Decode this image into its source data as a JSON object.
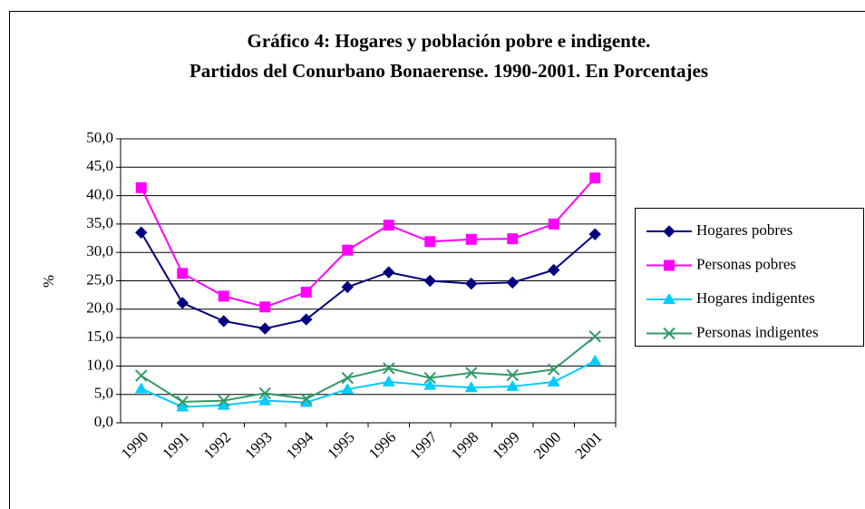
{
  "chart_data": {
    "type": "line",
    "title": "Gráfico 4: Hogares y población pobre e indigente.",
    "subtitle": "Partidos del Conurbano Bonaerense. 1990-2001.  En Porcentajes",
    "y_label": "%",
    "categories": [
      "1990",
      "1991",
      "1992",
      "1993",
      "1994",
      "1995",
      "1996",
      "1997",
      "1998",
      "1999",
      "2000",
      "2001"
    ],
    "series": [
      {
        "name": "Hogares pobres",
        "color": "#000080",
        "marker": "diamond",
        "values": [
          33.5,
          21.1,
          17.9,
          16.6,
          18.2,
          23.9,
          26.5,
          25.0,
          24.5,
          24.7,
          26.9,
          33.2
        ]
      },
      {
        "name": "Personas pobres",
        "color": "#ff00ff",
        "marker": "square",
        "values": [
          41.4,
          26.3,
          22.3,
          20.4,
          23.0,
          30.4,
          34.8,
          31.9,
          32.3,
          32.4,
          35.0,
          43.1
        ]
      },
      {
        "name": "Hogares indigentes",
        "color": "#00ccff",
        "marker": "triangle",
        "values": [
          6.0,
          2.8,
          3.1,
          3.9,
          3.6,
          5.9,
          7.2,
          6.6,
          6.2,
          6.4,
          7.2,
          10.9
        ]
      },
      {
        "name": "Personas indigentes",
        "color": "#339966",
        "marker": "x",
        "values": [
          8.3,
          3.7,
          3.9,
          5.2,
          4.2,
          7.9,
          9.6,
          7.9,
          8.8,
          8.4,
          9.4,
          15.2
        ]
      }
    ],
    "ylim": [
      0,
      50
    ],
    "yticks": [
      {
        "value": 0,
        "label": "0,0"
      },
      {
        "value": 5,
        "label": "5,0"
      },
      {
        "value": 10,
        "label": "10,0"
      },
      {
        "value": 15,
        "label": "15,0"
      },
      {
        "value": 20,
        "label": "20,0"
      },
      {
        "value": 25,
        "label": "25,0"
      },
      {
        "value": 30,
        "label": "30,0"
      },
      {
        "value": 35,
        "label": "35,0"
      },
      {
        "value": 40,
        "label": "40,0"
      },
      {
        "value": 45,
        "label": "45,0"
      },
      {
        "value": 50,
        "label": "50,0"
      }
    ],
    "grid": true,
    "legend": "right"
  }
}
